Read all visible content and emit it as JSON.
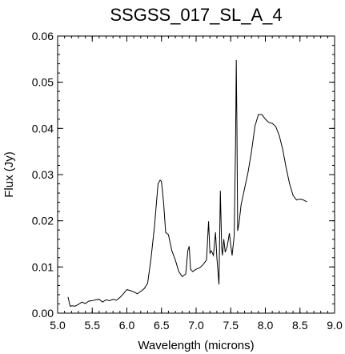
{
  "chart_data": {
    "type": "line",
    "title": "SSGSS_017_SL_A_4",
    "xlabel": "Wavelength (microns)",
    "ylabel": "Flux (Jy)",
    "xlim": [
      5.0,
      9.0
    ],
    "ylim": [
      0.0,
      0.06
    ],
    "xticks": [
      "5.0",
      "5.5",
      "6.0",
      "6.5",
      "7.0",
      "7.5",
      "8.0",
      "8.5",
      "9.0"
    ],
    "yticks": [
      "0.00",
      "0.01",
      "0.02",
      "0.03",
      "0.04",
      "0.05",
      "0.06"
    ],
    "grid": false,
    "series": [
      {
        "color": "#000000",
        "x": [
          5.15,
          5.18,
          5.21,
          5.25,
          5.3,
          5.35,
          5.4,
          5.45,
          5.5,
          5.55,
          5.6,
          5.65,
          5.7,
          5.75,
          5.8,
          5.85,
          5.9,
          5.95,
          6.0,
          6.05,
          6.1,
          6.15,
          6.2,
          6.25,
          6.3,
          6.35,
          6.4,
          6.45,
          6.48,
          6.5,
          6.53,
          6.56,
          6.6,
          6.65,
          6.7,
          6.75,
          6.8,
          6.85,
          6.88,
          6.9,
          6.92,
          6.95,
          7.0,
          7.05,
          7.1,
          7.15,
          7.18,
          7.2,
          7.22,
          7.25,
          7.28,
          7.3,
          7.33,
          7.35,
          7.37,
          7.38,
          7.4,
          7.42,
          7.45,
          7.48,
          7.5,
          7.52,
          7.55,
          7.57,
          7.58,
          7.59,
          7.6,
          7.62,
          7.65,
          7.7,
          7.75,
          7.8,
          7.85,
          7.9,
          7.95,
          8.0,
          8.05,
          8.1,
          8.15,
          8.2,
          8.25,
          8.3,
          8.35,
          8.4,
          8.45,
          8.5,
          8.55,
          8.6
        ],
        "y": [
          0.0035,
          0.0015,
          0.0016,
          0.0015,
          0.0019,
          0.0024,
          0.0021,
          0.0026,
          0.0027,
          0.0029,
          0.003,
          0.0024,
          0.0029,
          0.0027,
          0.003,
          0.0028,
          0.0034,
          0.0042,
          0.0051,
          0.0049,
          0.0046,
          0.0042,
          0.0047,
          0.0053,
          0.0065,
          0.012,
          0.019,
          0.028,
          0.0288,
          0.0285,
          0.024,
          0.0175,
          0.017,
          0.0135,
          0.0115,
          0.009,
          0.0079,
          0.0085,
          0.0135,
          0.0145,
          0.0095,
          0.009,
          0.0095,
          0.0098,
          0.0105,
          0.0115,
          0.0199,
          0.013,
          0.0135,
          0.0125,
          0.0175,
          0.012,
          0.0062,
          0.0265,
          0.014,
          0.0125,
          0.016,
          0.0132,
          0.0145,
          0.0173,
          0.0148,
          0.0125,
          0.0168,
          0.037,
          0.0548,
          0.0395,
          0.0178,
          0.0195,
          0.0235,
          0.027,
          0.0305,
          0.035,
          0.0405,
          0.043,
          0.043,
          0.042,
          0.0413,
          0.0411,
          0.0404,
          0.0385,
          0.0355,
          0.0315,
          0.028,
          0.0255,
          0.0245,
          0.0247,
          0.0245,
          0.0241
        ]
      }
    ]
  }
}
